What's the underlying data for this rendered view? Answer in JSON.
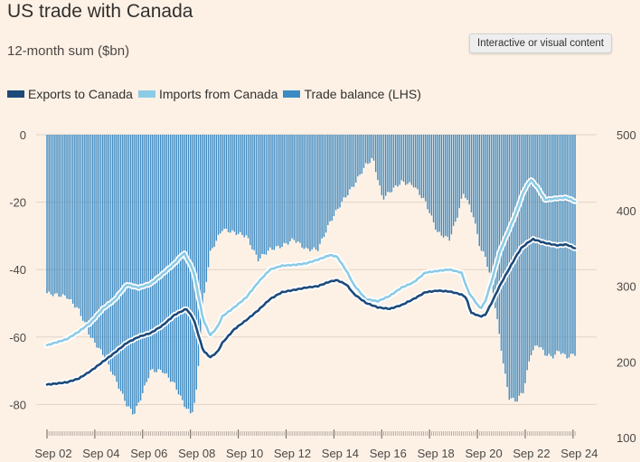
{
  "header": {
    "title": "US trade with Canada",
    "subtitle": "12-month sum ($bn)",
    "tag": "Interactive or visual content"
  },
  "colors": {
    "background": "#fdf1e6",
    "exports": "#1d4a7a",
    "imports": "#8ccbe6",
    "balance": "#3c8bc4",
    "grid": "#e0d3c6"
  },
  "chart_data": {
    "type": "bar+line",
    "subtitle": "12-month sum ($bn)",
    "legend": [
      {
        "key": "exports",
        "label": "Exports to Canada"
      },
      {
        "key": "imports",
        "label": "Imports from Canada"
      },
      {
        "key": "balance",
        "label": "Trade balance (LHS)"
      }
    ],
    "legend_position": "top-left",
    "x_ticks": [
      "Sep 02",
      "Sep 04",
      "Sep 06",
      "Sep 08",
      "Sep 10",
      "Sep 12",
      "Sep 14",
      "Sep 16",
      "Sep 18",
      "Sep 20",
      "Sep 22",
      "Sep 24"
    ],
    "x_range": [
      2002.67,
      2024.75
    ],
    "y_left": {
      "ticks": [
        0,
        -20,
        -40,
        -60,
        -80
      ],
      "range": [
        -90,
        0
      ]
    },
    "y_right": {
      "ticks": [
        500,
        400,
        300,
        200,
        100
      ],
      "range": [
        100,
        500
      ]
    },
    "grid": true,
    "series": [
      {
        "key": "balance",
        "name": "Trade balance (LHS)",
        "type": "bar",
        "axis": "left",
        "points": [
          [
            2002.67,
            -47
          ],
          [
            2003.5,
            -48
          ],
          [
            2004.0,
            -52
          ],
          [
            2004.5,
            -60
          ],
          [
            2005.0,
            -65
          ],
          [
            2005.5,
            -72
          ],
          [
            2006.0,
            -80
          ],
          [
            2006.3,
            -83
          ],
          [
            2006.6,
            -78
          ],
          [
            2007.0,
            -70
          ],
          [
            2007.5,
            -70
          ],
          [
            2008.0,
            -74
          ],
          [
            2008.4,
            -80
          ],
          [
            2008.7,
            -83
          ],
          [
            2008.9,
            -78
          ],
          [
            2009.2,
            -50
          ],
          [
            2009.5,
            -35
          ],
          [
            2010.0,
            -28
          ],
          [
            2010.5,
            -29
          ],
          [
            2011.0,
            -30
          ],
          [
            2011.5,
            -37
          ],
          [
            2012.0,
            -34
          ],
          [
            2012.5,
            -33
          ],
          [
            2013.0,
            -31
          ],
          [
            2013.5,
            -34
          ],
          [
            2014.0,
            -34
          ],
          [
            2014.5,
            -26
          ],
          [
            2015.0,
            -20
          ],
          [
            2015.5,
            -15
          ],
          [
            2016.0,
            -9
          ],
          [
            2016.3,
            -7
          ],
          [
            2016.7,
            -19
          ],
          [
            2017.0,
            -17
          ],
          [
            2017.5,
            -14
          ],
          [
            2018.0,
            -15
          ],
          [
            2018.5,
            -20
          ],
          [
            2019.0,
            -29
          ],
          [
            2019.5,
            -31
          ],
          [
            2019.8,
            -25
          ],
          [
            2020.1,
            -17
          ],
          [
            2020.5,
            -24
          ],
          [
            2020.8,
            -34
          ],
          [
            2021.0,
            -36
          ],
          [
            2021.3,
            -45
          ],
          [
            2021.6,
            -60
          ],
          [
            2021.8,
            -70
          ],
          [
            2022.0,
            -78
          ],
          [
            2022.3,
            -79
          ],
          [
            2022.6,
            -76
          ],
          [
            2022.9,
            -65
          ],
          [
            2023.2,
            -62
          ],
          [
            2023.5,
            -65
          ],
          [
            2023.8,
            -66
          ],
          [
            2024.1,
            -64
          ],
          [
            2024.4,
            -66
          ],
          [
            2024.75,
            -65
          ]
        ]
      },
      {
        "key": "exports",
        "name": "Exports to Canada",
        "type": "line",
        "axis": "right",
        "points": [
          [
            2002.67,
            170
          ],
          [
            2003.5,
            173
          ],
          [
            2004.0,
            178
          ],
          [
            2004.5,
            188
          ],
          [
            2005.0,
            200
          ],
          [
            2005.5,
            212
          ],
          [
            2006.0,
            225
          ],
          [
            2006.5,
            233
          ],
          [
            2007.0,
            238
          ],
          [
            2007.5,
            248
          ],
          [
            2008.0,
            262
          ],
          [
            2008.5,
            270
          ],
          [
            2008.8,
            257
          ],
          [
            2009.2,
            215
          ],
          [
            2009.5,
            206
          ],
          [
            2009.8,
            213
          ],
          [
            2010.0,
            225
          ],
          [
            2010.5,
            243
          ],
          [
            2011.0,
            255
          ],
          [
            2011.5,
            268
          ],
          [
            2012.0,
            283
          ],
          [
            2012.5,
            292
          ],
          [
            2013.0,
            295
          ],
          [
            2013.5,
            298
          ],
          [
            2014.0,
            300
          ],
          [
            2014.5,
            306
          ],
          [
            2014.8,
            308
          ],
          [
            2015.2,
            302
          ],
          [
            2015.5,
            290
          ],
          [
            2016.0,
            278
          ],
          [
            2016.5,
            272
          ],
          [
            2017.0,
            270
          ],
          [
            2017.5,
            275
          ],
          [
            2018.0,
            283
          ],
          [
            2018.5,
            292
          ],
          [
            2019.0,
            294
          ],
          [
            2019.5,
            293
          ],
          [
            2020.0,
            289
          ],
          [
            2020.2,
            285
          ],
          [
            2020.4,
            265
          ],
          [
            2020.8,
            260
          ],
          [
            2021.0,
            262
          ],
          [
            2021.3,
            280
          ],
          [
            2021.6,
            300
          ],
          [
            2022.0,
            323
          ],
          [
            2022.3,
            340
          ],
          [
            2022.5,
            350
          ],
          [
            2022.8,
            358
          ],
          [
            2023.0,
            362
          ],
          [
            2023.5,
            357
          ],
          [
            2024.0,
            354
          ],
          [
            2024.4,
            355
          ],
          [
            2024.75,
            350
          ]
        ]
      },
      {
        "key": "imports",
        "name": "Imports from Canada",
        "type": "line",
        "axis": "right",
        "points": [
          [
            2002.67,
            222
          ],
          [
            2003.5,
            230
          ],
          [
            2004.0,
            240
          ],
          [
            2004.5,
            252
          ],
          [
            2005.0,
            270
          ],
          [
            2005.5,
            282
          ],
          [
            2006.0,
            302
          ],
          [
            2006.5,
            298
          ],
          [
            2007.0,
            303
          ],
          [
            2007.5,
            316
          ],
          [
            2008.0,
            330
          ],
          [
            2008.4,
            344
          ],
          [
            2008.8,
            320
          ],
          [
            2009.2,
            256
          ],
          [
            2009.5,
            235
          ],
          [
            2009.8,
            246
          ],
          [
            2010.0,
            260
          ],
          [
            2010.5,
            272
          ],
          [
            2011.0,
            285
          ],
          [
            2011.5,
            305
          ],
          [
            2012.0,
            322
          ],
          [
            2012.5,
            327
          ],
          [
            2013.0,
            328
          ],
          [
            2013.5,
            330
          ],
          [
            2014.0,
            335
          ],
          [
            2014.5,
            341
          ],
          [
            2014.8,
            339
          ],
          [
            2015.2,
            320
          ],
          [
            2015.5,
            302
          ],
          [
            2016.0,
            283
          ],
          [
            2016.5,
            280
          ],
          [
            2017.0,
            287
          ],
          [
            2017.5,
            298
          ],
          [
            2018.0,
            305
          ],
          [
            2018.5,
            318
          ],
          [
            2019.0,
            320
          ],
          [
            2019.5,
            322
          ],
          [
            2020.0,
            318
          ],
          [
            2020.3,
            292
          ],
          [
            2020.8,
            270
          ],
          [
            2021.0,
            280
          ],
          [
            2021.3,
            310
          ],
          [
            2021.6,
            345
          ],
          [
            2022.0,
            375
          ],
          [
            2022.3,
            398
          ],
          [
            2022.6,
            425
          ],
          [
            2022.9,
            441
          ],
          [
            2023.2,
            430
          ],
          [
            2023.5,
            414
          ],
          [
            2024.0,
            416
          ],
          [
            2024.4,
            417
          ],
          [
            2024.75,
            412
          ]
        ]
      }
    ]
  }
}
